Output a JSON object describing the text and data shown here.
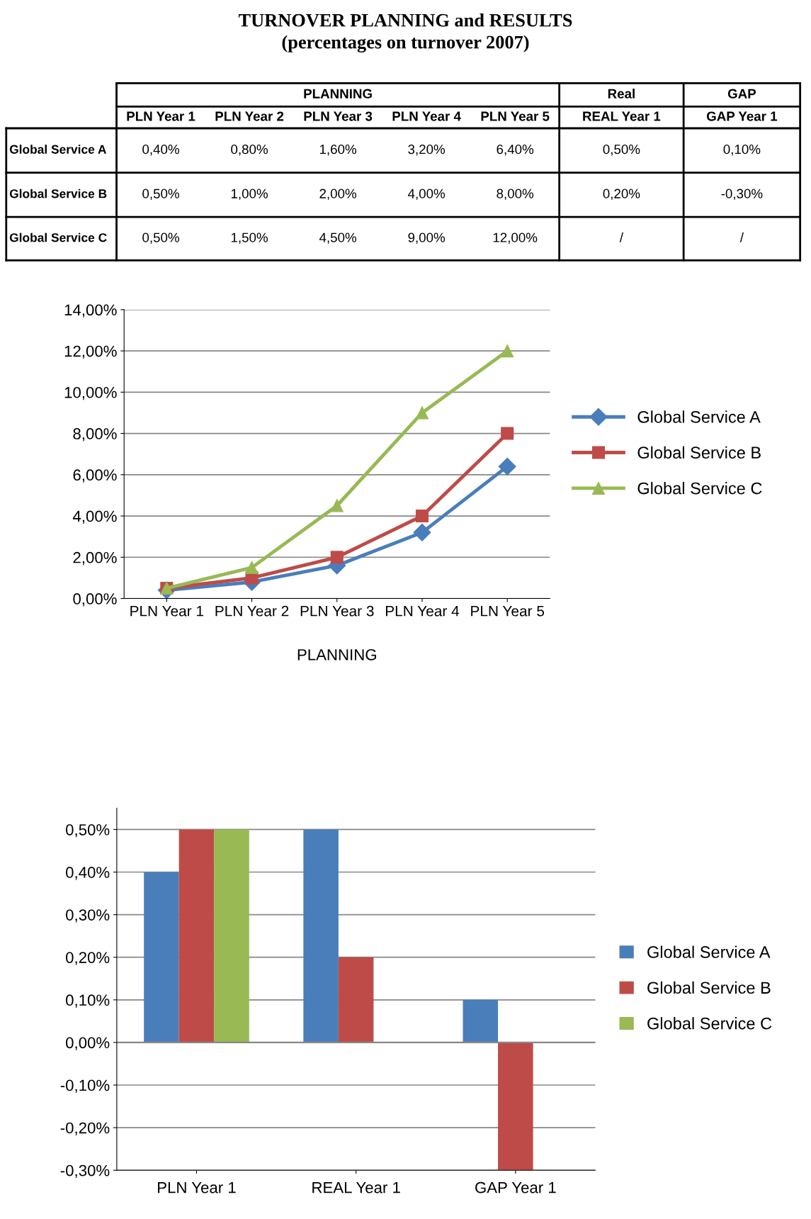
{
  "chart_data": [
    {
      "type": "line",
      "title": "TURNOVER PLANNING and RESULTS",
      "subtitle": "(percentages on turnover 2007)",
      "xlabel": "PLANNING",
      "categories": [
        "PLN Year 1",
        "PLN Year 2",
        "PLN Year 3",
        "PLN Year 4",
        "PLN Year 5"
      ],
      "series": [
        {
          "name": "Global Service A",
          "color": "#4a7ebb",
          "marker": "diamond",
          "values": [
            0.4,
            0.8,
            1.6,
            3.2,
            6.4
          ],
          "value_labels": [
            "0,40%",
            "0,80%",
            "1,60%",
            "3,20%",
            "6,40%"
          ]
        },
        {
          "name": "Global Service B",
          "color": "#be4b48",
          "marker": "square",
          "values": [
            0.5,
            1.0,
            2.0,
            4.0,
            8.0
          ],
          "value_labels": [
            "0,50%",
            "1,00%",
            "2,00%",
            "4,00%",
            "8,00%"
          ]
        },
        {
          "name": "Global Service C",
          "color": "#98b954",
          "marker": "triangle",
          "values": [
            0.5,
            1.5,
            4.5,
            9.0,
            12.0
          ],
          "value_labels": [
            "0,50%",
            "1,50%",
            "4,50%",
            "9,00%",
            "12,00%"
          ]
        }
      ],
      "ylim": [
        0,
        14
      ],
      "yticks": [
        {
          "value": 0,
          "label": "0,00%"
        },
        {
          "value": 2,
          "label": "2,00%"
        },
        {
          "value": 4,
          "label": "4,00%"
        },
        {
          "value": 6,
          "label": "6,00%"
        },
        {
          "value": 8,
          "label": "8,00%"
        },
        {
          "value": 10,
          "label": "10,00%"
        },
        {
          "value": 12,
          "label": "12,00%"
        },
        {
          "value": 14,
          "label": "14,00%"
        }
      ],
      "grid": "y",
      "legend": "right",
      "line_style": "solid"
    },
    {
      "type": "bar",
      "annotations": [
        "Real",
        "GAP",
        "0,50%",
        "0,10%",
        "0,20%",
        "-0,30%",
        "/",
        "/"
      ],
      "categories": [
        "PLN Year 1",
        "REAL Year 1",
        "GAP Year 1"
      ],
      "series": [
        {
          "name": "Global Service A",
          "color": "#4a7ebb",
          "values": [
            0.4,
            0.5,
            0.1
          ]
        },
        {
          "name": "Global Service B",
          "color": "#be4b48",
          "values": [
            0.5,
            0.2,
            -0.3
          ]
        },
        {
          "name": "Global Service C",
          "color": "#98b954",
          "values": [
            0.5,
            null,
            null
          ]
        }
      ],
      "ylim": [
        -0.3,
        0.55
      ],
      "yticks": [
        {
          "value": -0.3,
          "label": "-0,30%"
        },
        {
          "value": -0.2,
          "label": "-0,20%"
        },
        {
          "value": -0.1,
          "label": "-0,10%"
        },
        {
          "value": 0,
          "label": "0,00%"
        },
        {
          "value": 0.1,
          "label": "0,10%"
        },
        {
          "value": 0.2,
          "label": "0,20%"
        },
        {
          "value": 0.3,
          "label": "0,30%"
        },
        {
          "value": 0.4,
          "label": "0,40%"
        },
        {
          "value": 0.5,
          "label": "0,50%"
        }
      ],
      "grid": "y",
      "legend": "right"
    }
  ]
}
